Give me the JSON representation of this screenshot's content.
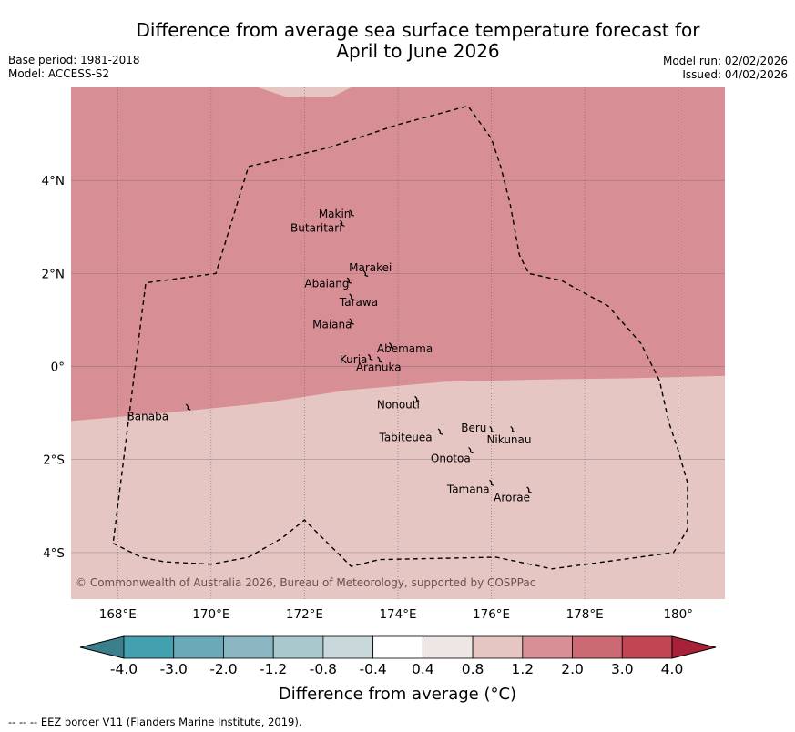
{
  "title": {
    "line1": "Difference from average sea surface temperature forecast for",
    "line2": "April to June 2026"
  },
  "meta_left": {
    "base_period": "Base period: 1981-2018",
    "model": "Model: ACCESS-S2"
  },
  "meta_right": {
    "model_run": "Model run: 02/02/2026",
    "issued": "Issued: 04/02/2026"
  },
  "map": {
    "extent": {
      "lon_min": 167.0,
      "lon_max": 181.0,
      "lat_min": -5.0,
      "lat_max": 6.0
    },
    "lon_ticks": [
      {
        "value": 168,
        "label": "168°E"
      },
      {
        "value": 170,
        "label": "170°E"
      },
      {
        "value": 172,
        "label": "172°E"
      },
      {
        "value": 174,
        "label": "174°E"
      },
      {
        "value": 176,
        "label": "176°E"
      },
      {
        "value": 178,
        "label": "178°E"
      },
      {
        "value": 180,
        "label": "180°"
      }
    ],
    "lat_ticks": [
      {
        "value": 4,
        "label": "4°N"
      },
      {
        "value": 2,
        "label": "2°N"
      },
      {
        "value": 0,
        "label": "0°"
      },
      {
        "value": -2,
        "label": "2°S"
      },
      {
        "value": -4,
        "label": "4°S"
      }
    ],
    "colors": {
      "range_0_4_to_0_8": "#eee6e4",
      "range_0_8_to_1_2": "#e6c6c2",
      "range_1_2_to_2_0": "#d78f95",
      "boundary": "#000000",
      "grid": "#555555"
    },
    "warm_region_southern_edge": [
      {
        "lon": 167.0,
        "lat": -1.17
      },
      {
        "lon": 169.0,
        "lat": -1.0
      },
      {
        "lon": 171.0,
        "lat": -0.8
      },
      {
        "lon": 173.0,
        "lat": -0.5
      },
      {
        "lon": 175.0,
        "lat": -0.33
      },
      {
        "lon": 177.0,
        "lat": -0.28
      },
      {
        "lon": 179.0,
        "lat": -0.25
      },
      {
        "lon": 181.0,
        "lat": -0.2
      }
    ],
    "cool_patch_top_edge": [
      {
        "lon": 171.0,
        "lat": 6.0
      },
      {
        "lon": 171.6,
        "lat": 5.8
      },
      {
        "lon": 172.6,
        "lat": 5.8
      },
      {
        "lon": 173.0,
        "lat": 6.0
      }
    ],
    "eez_border": [
      {
        "lon": 167.9,
        "lat": -3.8
      },
      {
        "lon": 168.5,
        "lat": -4.1
      },
      {
        "lon": 169.0,
        "lat": -4.2
      },
      {
        "lon": 170.0,
        "lat": -4.25
      },
      {
        "lon": 170.8,
        "lat": -4.1
      },
      {
        "lon": 171.5,
        "lat": -3.7
      },
      {
        "lon": 172.0,
        "lat": -3.3
      },
      {
        "lon": 172.3,
        "lat": -3.6
      },
      {
        "lon": 173.0,
        "lat": -4.3
      },
      {
        "lon": 173.6,
        "lat": -4.15
      },
      {
        "lon": 176.1,
        "lat": -4.1
      },
      {
        "lon": 177.3,
        "lat": -4.35
      },
      {
        "lon": 179.9,
        "lat": -4.0
      },
      {
        "lon": 180.2,
        "lat": -3.5
      },
      {
        "lon": 180.2,
        "lat": -2.5
      },
      {
        "lon": 180.0,
        "lat": -1.8
      },
      {
        "lon": 179.8,
        "lat": -1.2
      },
      {
        "lon": 179.6,
        "lat": -0.3
      },
      {
        "lon": 179.2,
        "lat": 0.5
      },
      {
        "lon": 178.5,
        "lat": 1.3
      },
      {
        "lon": 177.5,
        "lat": 1.85
      },
      {
        "lon": 176.8,
        "lat": 2.0
      },
      {
        "lon": 176.6,
        "lat": 2.4
      },
      {
        "lon": 176.4,
        "lat": 3.5
      },
      {
        "lon": 176.2,
        "lat": 4.3
      },
      {
        "lon": 176.0,
        "lat": 4.9
      },
      {
        "lon": 175.5,
        "lat": 5.6
      },
      {
        "lon": 174.0,
        "lat": 5.2
      },
      {
        "lon": 172.5,
        "lat": 4.7
      },
      {
        "lon": 170.8,
        "lat": 4.3
      },
      {
        "lon": 170.1,
        "lat": 2.0
      },
      {
        "lon": 168.6,
        "lat": 1.8
      },
      {
        "lon": 167.9,
        "lat": -3.8
      }
    ],
    "islands": [
      {
        "name": "Makin",
        "lon": 173.0,
        "lat": 3.3,
        "label_lon": 172.3,
        "label_lat": 3.2
      },
      {
        "name": "Butaritari",
        "lon": 172.8,
        "lat": 3.08,
        "label_lon": 171.7,
        "label_lat": 2.9
      },
      {
        "name": "Marakei",
        "lon": 173.3,
        "lat": 2.0,
        "label_lon": 172.95,
        "label_lat": 2.05
      },
      {
        "name": "Abaiang",
        "lon": 172.95,
        "lat": 1.85,
        "label_lon": 172.0,
        "label_lat": 1.7
      },
      {
        "name": "Tarawa",
        "lon": 173.0,
        "lat": 1.5,
        "label_lon": 172.75,
        "label_lat": 1.3
      },
      {
        "name": "Maiana",
        "lon": 173.0,
        "lat": 0.97,
        "label_lon": 172.17,
        "label_lat": 0.82
      },
      {
        "name": "Abemama",
        "lon": 173.85,
        "lat": 0.45,
        "label_lon": 173.55,
        "label_lat": 0.3
      },
      {
        "name": "Kuria",
        "lon": 173.4,
        "lat": 0.2,
        "label_lon": 172.75,
        "label_lat": 0.07
      },
      {
        "name": "Aranuka",
        "lon": 173.6,
        "lat": 0.15,
        "label_lon": 173.1,
        "label_lat": -0.1
      },
      {
        "name": "Nonouti",
        "lon": 174.4,
        "lat": -0.7,
        "label_lon": 173.55,
        "label_lat": -0.9
      },
      {
        "name": "Banaba",
        "lon": 169.5,
        "lat": -0.87,
        "label_lon": 168.2,
        "label_lat": -1.15
      },
      {
        "name": "Tabiteuea",
        "lon": 174.9,
        "lat": -1.4,
        "label_lon": 173.6,
        "label_lat": -1.6
      },
      {
        "name": "Beru",
        "lon": 176.0,
        "lat": -1.35,
        "label_lon": 175.35,
        "label_lat": -1.4
      },
      {
        "name": "Nikunau",
        "lon": 176.45,
        "lat": -1.35,
        "label_lon": 175.9,
        "label_lat": -1.65
      },
      {
        "name": "Onotoa",
        "lon": 175.55,
        "lat": -1.8,
        "label_lon": 174.7,
        "label_lat": -2.05
      },
      {
        "name": "Tamana",
        "lon": 176.0,
        "lat": -2.5,
        "label_lon": 175.05,
        "label_lat": -2.72
      },
      {
        "name": "Arorae",
        "lon": 176.8,
        "lat": -2.65,
        "label_lon": 176.05,
        "label_lat": -2.9
      }
    ],
    "copyright": "© Commonwealth of Australia 2026, Bureau of Meteorology, supported by COSPPac"
  },
  "colorbar": {
    "labels": [
      "-4.0",
      "-3.0",
      "-2.0",
      "-1.2",
      "-0.8",
      "-0.4",
      "0.4",
      "0.8",
      "1.2",
      "2.0",
      "3.0",
      "4.0"
    ],
    "segment_colors": [
      "#42a0af",
      "#6aaab8",
      "#89b6c0",
      "#a8c8cc",
      "#c9d8db",
      "#ffffff",
      "#eee6e4",
      "#e6c6c2",
      "#d78f95",
      "#cc6a73",
      "#c14553"
    ],
    "low_extend_color": "#3b7f8c",
    "high_extend_color": "#a92039",
    "title": "Difference from average (°C)"
  },
  "footer": "--  --  -- EEZ border V11 (Flanders Marine Institute, 2019)."
}
